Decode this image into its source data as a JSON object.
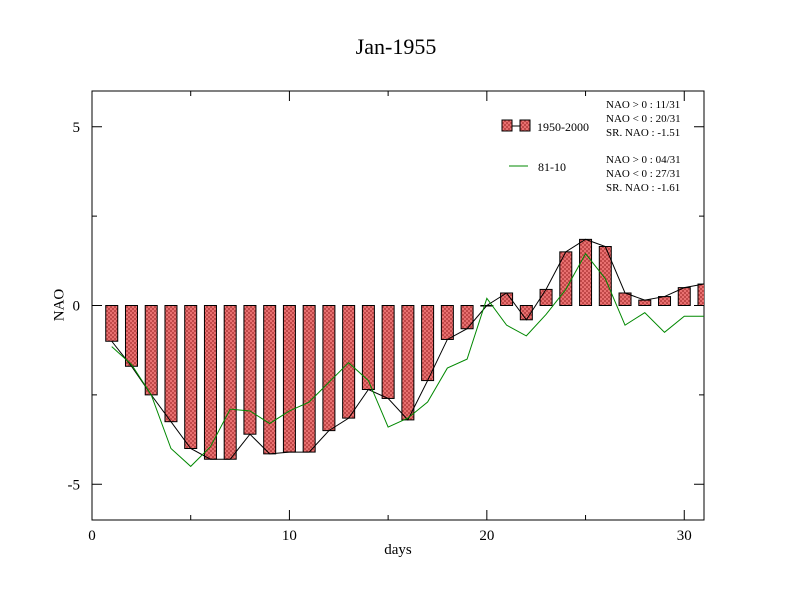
{
  "chart_data": {
    "type": "bar",
    "title": "Jan-1955",
    "xlabel": "days",
    "ylabel": "NAO",
    "xlim": [
      0,
      31
    ],
    "ylim": [
      -6,
      6
    ],
    "xticks": [
      0,
      10,
      20,
      30
    ],
    "yticks": [
      -5,
      0,
      5
    ],
    "grid": false,
    "legend_position": "top-right",
    "x": [
      1,
      2,
      3,
      4,
      5,
      6,
      7,
      8,
      9,
      10,
      11,
      12,
      13,
      14,
      15,
      16,
      17,
      18,
      19,
      20,
      21,
      22,
      23,
      24,
      25,
      26,
      27,
      28,
      29,
      30,
      31
    ],
    "series": [
      {
        "name": "1950-2000",
        "kind": "bar+line",
        "color": "#e06060",
        "values": [
          -1.0,
          -1.7,
          -2.5,
          -3.25,
          -4.0,
          -4.3,
          -4.3,
          -3.6,
          -4.15,
          -4.1,
          -4.1,
          -3.5,
          -3.15,
          -2.35,
          -2.6,
          -3.2,
          -2.1,
          -0.95,
          -0.65,
          0.0,
          0.35,
          -0.4,
          0.45,
          1.5,
          1.85,
          1.65,
          0.35,
          0.15,
          0.25,
          0.5,
          0.6
        ],
        "stats": [
          "NAO > 0 : 11/31",
          "NAO < 0 : 20/31",
          "SR. NAO : -1.51"
        ]
      },
      {
        "name": "81-10",
        "kind": "line",
        "color": "#008800",
        "values": [
          -1.15,
          -1.65,
          -2.5,
          -4.0,
          -4.5,
          -3.95,
          -2.9,
          -2.95,
          -3.3,
          -2.95,
          -2.7,
          -2.15,
          -1.6,
          -2.1,
          -3.4,
          -3.15,
          -2.7,
          -1.75,
          -1.5,
          0.2,
          -0.55,
          -0.85,
          -0.25,
          0.45,
          1.45,
          0.75,
          -0.55,
          -0.2,
          -0.75,
          -0.3,
          -0.3
        ],
        "stats": [
          "NAO > 0 : 04/31",
          "NAO < 0 : 27/31",
          "SR. NAO : -1.61"
        ]
      }
    ]
  }
}
